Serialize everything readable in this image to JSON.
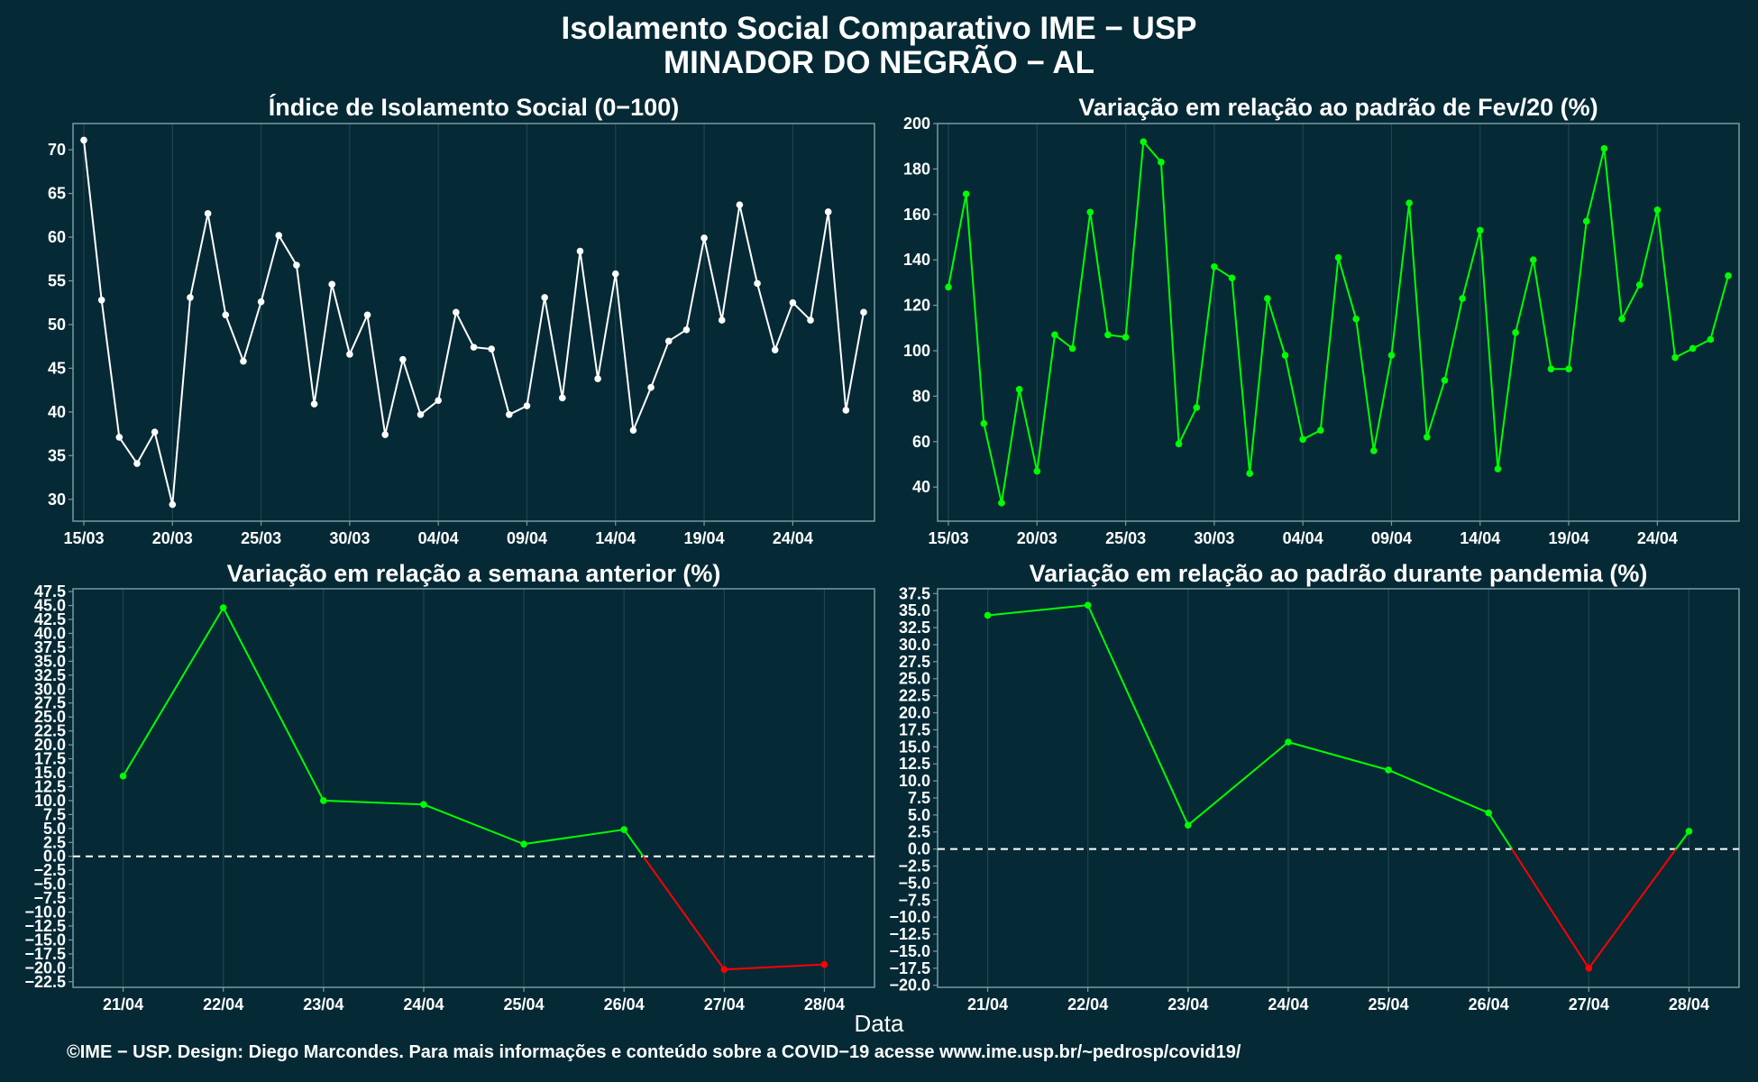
{
  "header": {
    "title": "Isolamento Social Comparativo IME − USP",
    "subtitle": "MINADOR DO NEGRÃO − AL"
  },
  "xlabel": "Data",
  "caption": "©IME − USP. Design: Diego Marcondes. Para mais informações e conteúdo sobre a COVID−19 acesse www.ime.usp.br/~pedrosp/covid19/",
  "colors": {
    "background": "#052a35",
    "panel_border": "#7a9aa3",
    "grid": "#1f4450",
    "white_series": "#ffffff",
    "green_series": "#00ff00",
    "red_series": "#ff0000",
    "zero_line": "#ffffff"
  },
  "chart_data": [
    {
      "type": "line",
      "title": "Índice de Isolamento Social (0−100)",
      "x_ticks": [
        "15/03",
        "20/03",
        "25/03",
        "30/03",
        "04/04",
        "09/04",
        "14/04",
        "19/04",
        "24/04"
      ],
      "x_tick_index": [
        0,
        5,
        10,
        15,
        20,
        25,
        30,
        35,
        40
      ],
      "y_ticks": [
        30,
        35,
        40,
        45,
        50,
        55,
        60,
        65,
        70
      ],
      "ylim": [
        27.5,
        73
      ],
      "x_count": 45,
      "color": "white",
      "values": [
        71.1,
        52.8,
        37.1,
        34.1,
        37.7,
        29.4,
        53.1,
        62.7,
        51.1,
        45.8,
        52.6,
        60.2,
        56.8,
        40.9,
        54.6,
        46.6,
        51.1,
        37.4,
        46.0,
        39.7,
        41.3,
        51.4,
        47.4,
        47.2,
        39.7,
        40.7,
        53.1,
        41.6,
        58.4,
        43.8,
        55.8,
        37.9,
        42.8,
        48.1,
        49.4,
        59.9,
        50.5,
        63.7,
        54.7,
        47.1,
        52.5,
        50.5,
        62.9,
        40.2,
        51.4
      ]
    },
    {
      "type": "line",
      "title": "Variação em relação ao padrão de Fev/20 (%)",
      "x_ticks": [
        "15/03",
        "20/03",
        "25/03",
        "30/03",
        "04/04",
        "09/04",
        "14/04",
        "19/04",
        "24/04"
      ],
      "x_tick_index": [
        0,
        5,
        10,
        15,
        20,
        25,
        30,
        35,
        40
      ],
      "y_ticks": [
        40,
        60,
        80,
        100,
        120,
        140,
        160,
        180,
        200
      ],
      "ylim": [
        25,
        200
      ],
      "x_count": 45,
      "color": "green",
      "values": [
        128,
        169,
        68,
        33,
        83,
        47,
        107,
        101,
        161,
        107,
        106,
        192,
        183,
        59,
        75,
        137,
        132,
        46,
        123,
        98,
        61,
        65,
        141,
        114,
        56,
        98,
        165,
        62,
        87,
        123,
        153,
        48,
        108,
        140,
        92,
        92,
        157,
        189,
        114,
        129,
        162,
        97,
        101,
        105,
        133
      ]
    },
    {
      "type": "line",
      "title": "Variação em relação a semana anterior (%)",
      "categories": [
        "21/04",
        "22/04",
        "23/04",
        "24/04",
        "25/04",
        "26/04",
        "27/04",
        "28/04"
      ],
      "values": [
        14.4,
        44.6,
        10.0,
        9.3,
        2.2,
        4.8,
        -20.3,
        -19.4
      ],
      "ylim": [
        -23.5,
        48
      ],
      "y_ticks": [
        -22.5,
        -20.0,
        -17.5,
        -15.0,
        -12.5,
        -10.0,
        -7.5,
        -5.0,
        -2.5,
        0.0,
        2.5,
        5.0,
        7.5,
        10.0,
        12.5,
        15.0,
        17.5,
        20.0,
        22.5,
        25.0,
        27.5,
        30.0,
        32.5,
        35.0,
        37.5,
        40.0,
        42.5,
        45.0,
        47.5
      ],
      "zero_line": true,
      "colors": "green where value ≥ 0, red where < 0"
    },
    {
      "type": "line",
      "title": "Variação em relação ao padrão durante pandemia (%)",
      "categories": [
        "21/04",
        "22/04",
        "23/04",
        "24/04",
        "25/04",
        "26/04",
        "27/04",
        "28/04"
      ],
      "values": [
        34.3,
        35.8,
        3.5,
        15.7,
        11.6,
        5.3,
        -17.5,
        2.6
      ],
      "ylim": [
        -20.3,
        38.2
      ],
      "y_ticks": [
        -20.0,
        -17.5,
        -15.0,
        -12.5,
        -10.0,
        -7.5,
        -5.0,
        -2.5,
        0.0,
        2.5,
        5.0,
        7.5,
        10.0,
        12.5,
        15.0,
        17.5,
        20.0,
        22.5,
        25.0,
        27.5,
        30.0,
        32.5,
        35.0,
        37.5
      ],
      "zero_line": true,
      "colors": "green where value ≥ 0, red where < 0"
    }
  ]
}
